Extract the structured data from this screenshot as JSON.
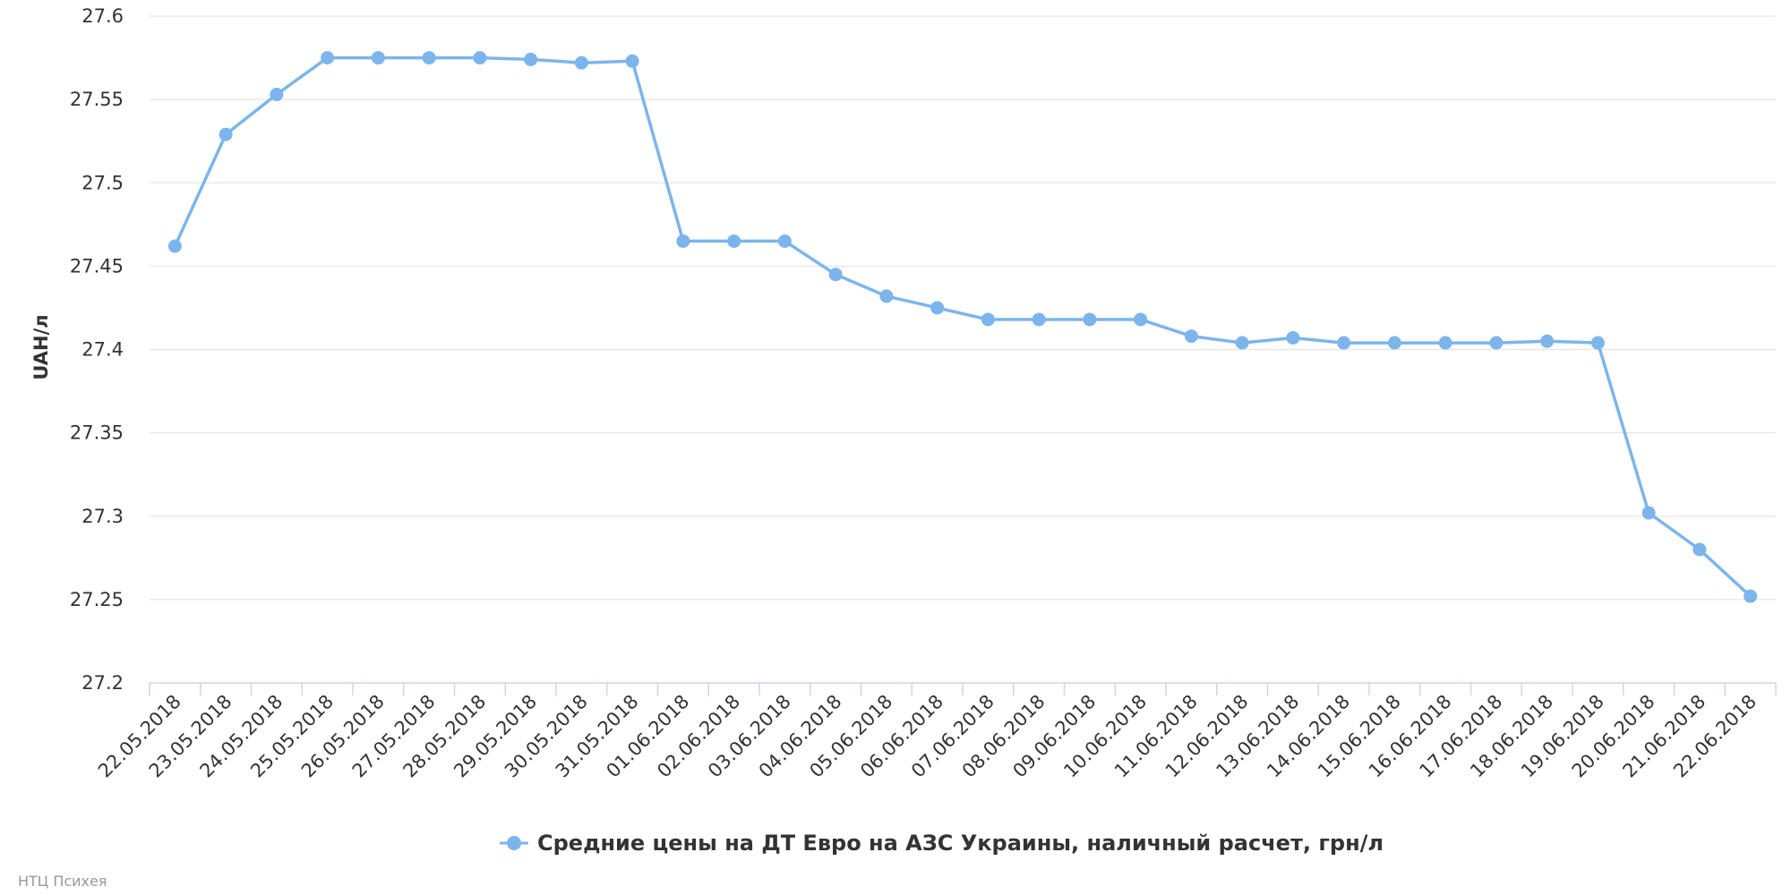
{
  "chart_data": {
    "type": "line",
    "ylabel": "UAH/л",
    "ylim": [
      27.2,
      27.6
    ],
    "yticks": [
      "27.6",
      "27.55",
      "27.5",
      "27.45",
      "27.4",
      "27.35",
      "27.3",
      "27.25",
      "27.2"
    ],
    "categories": [
      "22.05.2018",
      "23.05.2018",
      "24.05.2018",
      "25.05.2018",
      "26.05.2018",
      "27.05.2018",
      "28.05.2018",
      "29.05.2018",
      "30.05.2018",
      "31.05.2018",
      "01.06.2018",
      "02.06.2018",
      "03.06.2018",
      "04.06.2018",
      "05.06.2018",
      "06.06.2018",
      "07.06.2018",
      "08.06.2018",
      "09.06.2018",
      "10.06.2018",
      "11.06.2018",
      "12.06.2018",
      "13.06.2018",
      "14.06.2018",
      "15.06.2018",
      "16.06.2018",
      "17.06.2018",
      "18.06.2018",
      "19.06.2018",
      "20.06.2018",
      "21.06.2018",
      "22.06.2018"
    ],
    "series": [
      {
        "name": "Средние цены на ДТ Евро на АЗС Украины, наличный расчет, грн/л",
        "color": "#7cb5ec",
        "values": [
          27.462,
          27.529,
          27.553,
          27.575,
          27.575,
          27.575,
          27.575,
          27.574,
          27.572,
          27.573,
          27.465,
          27.465,
          27.465,
          27.445,
          27.432,
          27.425,
          27.418,
          27.418,
          27.418,
          27.418,
          27.408,
          27.404,
          27.407,
          27.404,
          27.404,
          27.404,
          27.404,
          27.405,
          27.404,
          27.302,
          27.28,
          27.252
        ]
      }
    ],
    "grid": true,
    "legend": "bottom-center"
  },
  "credit": "НТЦ Психея"
}
